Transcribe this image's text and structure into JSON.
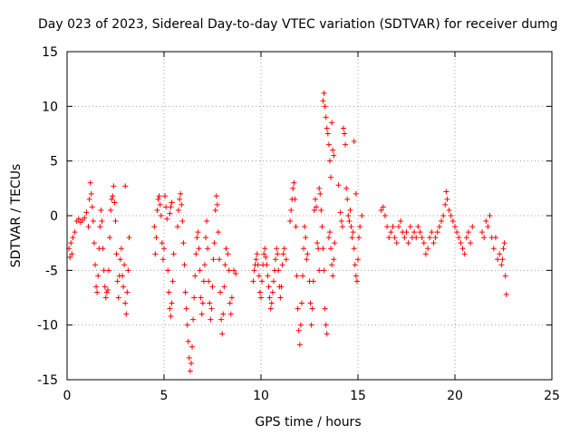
{
  "chart_data": {
    "type": "scatter",
    "title": "Day 023 of 2023, Sidereal Day-to-day VTEC variation (SDTVAR) for receiver dumg",
    "xlabel": "GPS time / hours",
    "ylabel": "SDTVAR / TECUs",
    "xlim": [
      0,
      25
    ],
    "ylim": [
      -15,
      15
    ],
    "xticks": [
      0,
      5,
      10,
      15,
      20,
      25
    ],
    "yticks": [
      -15,
      -10,
      -5,
      0,
      5,
      10,
      15
    ],
    "xtick_labels": [
      "0",
      "5",
      "10",
      "15",
      "20",
      "25"
    ],
    "ytick_labels": [
      "-15",
      "-10",
      "-5",
      "0",
      "5",
      "10",
      "15"
    ],
    "grid": true,
    "marker": "+",
    "color": "#ff0000",
    "series": [
      {
        "name": "SDTVAR",
        "points": [
          [
            0.1,
            -3.0
          ],
          [
            0.15,
            -3.8
          ],
          [
            0.2,
            -2.5
          ],
          [
            0.25,
            -3.5
          ],
          [
            0.3,
            -2.0
          ],
          [
            0.4,
            -1.5
          ],
          [
            0.5,
            -0.5
          ],
          [
            0.6,
            -0.3
          ],
          [
            0.7,
            -0.6
          ],
          [
            0.8,
            -0.4
          ],
          [
            0.9,
            -0.2
          ],
          [
            1.0,
            0.3
          ],
          [
            1.1,
            -1.0
          ],
          [
            1.15,
            1.5
          ],
          [
            1.2,
            3.0
          ],
          [
            1.25,
            2.0
          ],
          [
            1.3,
            0.8
          ],
          [
            1.35,
            -0.5
          ],
          [
            1.4,
            -2.5
          ],
          [
            1.45,
            -4.5
          ],
          [
            1.5,
            -6.5
          ],
          [
            1.55,
            -7.0
          ],
          [
            1.6,
            -5.5
          ],
          [
            1.65,
            -3.0
          ],
          [
            1.7,
            -1.0
          ],
          [
            1.75,
            0.5
          ],
          [
            1.8,
            -0.5
          ],
          [
            1.85,
            -3.0
          ],
          [
            1.9,
            -5.0
          ],
          [
            1.95,
            -6.5
          ],
          [
            2.0,
            -7.5
          ],
          [
            2.05,
            -7.0
          ],
          [
            2.1,
            -6.8
          ],
          [
            2.15,
            -5.0
          ],
          [
            2.2,
            -2.0
          ],
          [
            2.25,
            0.5
          ],
          [
            2.3,
            1.5
          ],
          [
            2.35,
            1.8
          ],
          [
            2.4,
            2.7
          ],
          [
            2.45,
            1.2
          ],
          [
            2.5,
            -0.5
          ],
          [
            2.55,
            -3.5
          ],
          [
            2.6,
            -6.0
          ],
          [
            2.65,
            -7.5
          ],
          [
            2.7,
            -5.5
          ],
          [
            2.75,
            -4.0
          ],
          [
            2.8,
            -3.0
          ],
          [
            2.85,
            -5.5
          ],
          [
            2.9,
            -6.5
          ],
          [
            2.95,
            -4.5
          ],
          [
            3.0,
            -8.0
          ],
          [
            3.05,
            -9.0
          ],
          [
            3.1,
            -7.0
          ],
          [
            3.15,
            -5.0
          ],
          [
            3.2,
            -2.0
          ],
          [
            3.0,
            2.7
          ],
          [
            4.5,
            -1.0
          ],
          [
            4.55,
            -3.5
          ],
          [
            4.6,
            -2.0
          ],
          [
            4.65,
            0.5
          ],
          [
            4.7,
            1.5
          ],
          [
            4.75,
            1.8
          ],
          [
            4.8,
            1.0
          ],
          [
            4.85,
            0.0
          ],
          [
            4.9,
            -2.5
          ],
          [
            4.95,
            -4.0
          ],
          [
            5.0,
            -3.0
          ],
          [
            5.05,
            1.8
          ],
          [
            5.1,
            0.8
          ],
          [
            5.15,
            -0.3
          ],
          [
            5.3,
            0.2
          ],
          [
            5.35,
            0.8
          ],
          [
            5.4,
            1.2
          ],
          [
            5.2,
            -5.0
          ],
          [
            5.25,
            -7.0
          ],
          [
            5.3,
            -8.5
          ],
          [
            5.35,
            -9.2
          ],
          [
            5.4,
            -8.0
          ],
          [
            5.45,
            -6.0
          ],
          [
            5.5,
            -3.5
          ],
          [
            5.7,
            -1.0
          ],
          [
            5.75,
            0.5
          ],
          [
            5.8,
            1.5
          ],
          [
            5.85,
            2.0
          ],
          [
            5.9,
            1.0
          ],
          [
            5.95,
            -0.5
          ],
          [
            6.0,
            -2.5
          ],
          [
            6.05,
            -4.5
          ],
          [
            6.1,
            -7.0
          ],
          [
            6.15,
            -8.5
          ],
          [
            6.2,
            -10.0
          ],
          [
            6.25,
            -11.5
          ],
          [
            6.3,
            -13.0
          ],
          [
            6.35,
            -14.2
          ],
          [
            6.4,
            -13.5
          ],
          [
            6.45,
            -12.0
          ],
          [
            6.5,
            -9.5
          ],
          [
            6.55,
            -7.5
          ],
          [
            6.6,
            -5.5
          ],
          [
            6.65,
            -3.5
          ],
          [
            6.7,
            -2.0
          ],
          [
            6.75,
            -1.5
          ],
          [
            6.8,
            -3.0
          ],
          [
            6.85,
            -5.0
          ],
          [
            6.9,
            -7.5
          ],
          [
            6.95,
            -9.0
          ],
          [
            7.0,
            -8.0
          ],
          [
            7.05,
            -6.0
          ],
          [
            7.1,
            -4.5
          ],
          [
            7.15,
            -2.0
          ],
          [
            7.2,
            -0.5
          ],
          [
            7.25,
            -3.0
          ],
          [
            7.3,
            -6.0
          ],
          [
            7.35,
            -8.0
          ],
          [
            7.4,
            -9.5
          ],
          [
            7.45,
            -8.5
          ],
          [
            7.5,
            -6.5
          ],
          [
            7.55,
            -4.0
          ],
          [
            7.6,
            -2.5
          ],
          [
            7.65,
            0.5
          ],
          [
            7.7,
            1.8
          ],
          [
            7.75,
            1.0
          ],
          [
            7.8,
            -1.5
          ],
          [
            7.85,
            -4.0
          ],
          [
            7.9,
            -7.0
          ],
          [
            7.95,
            -9.5
          ],
          [
            8.0,
            -10.8
          ],
          [
            8.05,
            -9.0
          ],
          [
            8.1,
            -6.5
          ],
          [
            8.15,
            -4.5
          ],
          [
            8.2,
            -3.0
          ],
          [
            8.3,
            -3.5
          ],
          [
            8.35,
            -5.0
          ],
          [
            8.4,
            -8.0
          ],
          [
            8.45,
            -9.0
          ],
          [
            8.5,
            -7.5
          ],
          [
            8.6,
            -5.0
          ],
          [
            8.7,
            -5.3
          ],
          [
            9.6,
            -6.0
          ],
          [
            9.65,
            -5.0
          ],
          [
            9.7,
            -4.5
          ],
          [
            9.75,
            -4.0
          ],
          [
            9.8,
            -3.5
          ],
          [
            9.85,
            -4.5
          ],
          [
            9.9,
            -5.5
          ],
          [
            9.95,
            -7.0
          ],
          [
            10.0,
            -7.5
          ],
          [
            10.05,
            -6.0
          ],
          [
            10.1,
            -4.5
          ],
          [
            10.15,
            -3.5
          ],
          [
            10.2,
            -3.0
          ],
          [
            10.25,
            -3.8
          ],
          [
            10.3,
            -4.5
          ],
          [
            10.35,
            -5.5
          ],
          [
            10.4,
            -6.5
          ],
          [
            10.45,
            -7.5
          ],
          [
            10.5,
            -8.5
          ],
          [
            10.55,
            -8.0
          ],
          [
            10.6,
            -7.0
          ],
          [
            10.65,
            -6.0
          ],
          [
            10.7,
            -5.0
          ],
          [
            10.75,
            -4.0
          ],
          [
            10.8,
            -3.0
          ],
          [
            10.85,
            -3.5
          ],
          [
            10.9,
            -5.0
          ],
          [
            10.95,
            -6.5
          ],
          [
            11.0,
            -7.5
          ],
          [
            11.05,
            -6.5
          ],
          [
            11.1,
            -4.5
          ],
          [
            11.15,
            -3.5
          ],
          [
            11.2,
            -3.0
          ],
          [
            11.3,
            -4.0
          ],
          [
            11.5,
            -0.5
          ],
          [
            11.55,
            0.5
          ],
          [
            11.6,
            1.5
          ],
          [
            11.65,
            2.5
          ],
          [
            11.7,
            3.0
          ],
          [
            11.75,
            1.5
          ],
          [
            11.8,
            -1.0
          ],
          [
            11.85,
            -5.5
          ],
          [
            11.9,
            -8.5
          ],
          [
            11.95,
            -10.5
          ],
          [
            12.0,
            -11.8
          ],
          [
            12.05,
            -10.0
          ],
          [
            12.1,
            -8.0
          ],
          [
            12.15,
            -5.5
          ],
          [
            12.2,
            -3.0
          ],
          [
            12.25,
            -1.0
          ],
          [
            12.3,
            -2.0
          ],
          [
            12.35,
            -4.0
          ],
          [
            12.4,
            -3.5
          ],
          [
            12.5,
            -6.0
          ],
          [
            12.55,
            -8.0
          ],
          [
            12.6,
            -10.0
          ],
          [
            12.65,
            -8.5
          ],
          [
            12.7,
            -6.0
          ],
          [
            12.75,
            0.5
          ],
          [
            12.8,
            1.5
          ],
          [
            12.85,
            0.8
          ],
          [
            12.9,
            -2.5
          ],
          [
            12.95,
            -3.0
          ],
          [
            13.0,
            -5.0
          ],
          [
            13.0,
            2.5
          ],
          [
            13.05,
            2.0
          ],
          [
            13.1,
            0.5
          ],
          [
            13.15,
            -1.0
          ],
          [
            13.2,
            -3.0
          ],
          [
            13.25,
            -5.0
          ],
          [
            13.3,
            -8.5
          ],
          [
            13.35,
            -10.0
          ],
          [
            13.4,
            -10.8
          ],
          [
            13.5,
            -2.0
          ],
          [
            13.55,
            -1.5
          ],
          [
            13.6,
            -3.0
          ],
          [
            13.65,
            -4.5
          ],
          [
            13.7,
            -5.5
          ],
          [
            13.75,
            -4.0
          ],
          [
            13.8,
            -2.5
          ],
          [
            13.2,
            10.5
          ],
          [
            13.25,
            11.2
          ],
          [
            13.3,
            10.0
          ],
          [
            13.35,
            9.0
          ],
          [
            13.4,
            8.0
          ],
          [
            13.45,
            7.5
          ],
          [
            13.5,
            6.5
          ],
          [
            13.55,
            5.0
          ],
          [
            13.6,
            3.5
          ],
          [
            13.65,
            8.5
          ],
          [
            13.7,
            6.0
          ],
          [
            13.75,
            5.5
          ],
          [
            14.0,
            2.8
          ],
          [
            14.1,
            0.3
          ],
          [
            14.15,
            -0.5
          ],
          [
            14.2,
            -1.0
          ],
          [
            14.25,
            8.0
          ],
          [
            14.3,
            7.5
          ],
          [
            14.35,
            6.5
          ],
          [
            14.4,
            2.5
          ],
          [
            14.45,
            1.5
          ],
          [
            14.5,
            0.0
          ],
          [
            14.55,
            -0.5
          ],
          [
            14.6,
            0.5
          ],
          [
            14.65,
            -1.0
          ],
          [
            14.7,
            -2.0
          ],
          [
            14.75,
            -1.5
          ],
          [
            14.8,
            -3.0
          ],
          [
            14.85,
            -4.5
          ],
          [
            14.9,
            -5.5
          ],
          [
            14.95,
            -6.0
          ],
          [
            15.0,
            -4.0
          ],
          [
            15.05,
            -2.0
          ],
          [
            15.1,
            -1.0
          ],
          [
            14.8,
            6.8
          ],
          [
            14.9,
            2.0
          ],
          [
            15.2,
            0.0
          ],
          [
            16.2,
            0.5
          ],
          [
            16.3,
            0.8
          ],
          [
            16.4,
            0.0
          ],
          [
            16.5,
            -1.0
          ],
          [
            16.6,
            -2.0
          ],
          [
            16.7,
            -1.5
          ],
          [
            16.8,
            -1.0
          ],
          [
            16.9,
            -2.0
          ],
          [
            17.0,
            -2.5
          ],
          [
            17.1,
            -1.0
          ],
          [
            17.2,
            -0.5
          ],
          [
            17.3,
            -1.5
          ],
          [
            17.4,
            -2.0
          ],
          [
            17.5,
            -1.5
          ],
          [
            17.6,
            -2.5
          ],
          [
            17.7,
            -1.0
          ],
          [
            17.8,
            -2.0
          ],
          [
            17.9,
            -1.5
          ],
          [
            18.0,
            -2.0
          ],
          [
            18.1,
            -1.0
          ],
          [
            18.2,
            -1.5
          ],
          [
            18.3,
            -2.0
          ],
          [
            18.4,
            -2.5
          ],
          [
            18.5,
            -3.5
          ],
          [
            18.6,
            -3.0
          ],
          [
            18.7,
            -2.0
          ],
          [
            18.8,
            -1.5
          ],
          [
            18.9,
            -2.5
          ],
          [
            19.0,
            -2.0
          ],
          [
            19.1,
            -1.5
          ],
          [
            19.2,
            -1.0
          ],
          [
            19.3,
            -0.5
          ],
          [
            19.4,
            0.0
          ],
          [
            19.5,
            1.0
          ],
          [
            19.55,
            2.2
          ],
          [
            19.6,
            1.5
          ],
          [
            19.7,
            0.5
          ],
          [
            19.8,
            0.0
          ],
          [
            19.9,
            -0.5
          ],
          [
            20.0,
            -1.0
          ],
          [
            20.1,
            -1.5
          ],
          [
            20.2,
            -2.0
          ],
          [
            20.3,
            -2.5
          ],
          [
            20.4,
            -3.0
          ],
          [
            20.5,
            -3.5
          ],
          [
            20.6,
            -2.0
          ],
          [
            20.7,
            -1.5
          ],
          [
            20.8,
            -2.5
          ],
          [
            20.9,
            -1.0
          ],
          [
            21.4,
            -1.5
          ],
          [
            21.5,
            -2.0
          ],
          [
            21.6,
            -0.5
          ],
          [
            21.7,
            -1.0
          ],
          [
            21.8,
            0.0
          ],
          [
            21.9,
            -2.0
          ],
          [
            22.0,
            -3.0
          ],
          [
            22.1,
            -2.0
          ],
          [
            22.2,
            -4.0
          ],
          [
            22.3,
            -3.5
          ],
          [
            22.4,
            -4.5
          ],
          [
            22.5,
            -3.0
          ],
          [
            22.6,
            -5.5
          ],
          [
            22.65,
            -7.2
          ],
          [
            22.55,
            -2.5
          ],
          [
            22.45,
            -4.0
          ]
        ]
      }
    ]
  }
}
